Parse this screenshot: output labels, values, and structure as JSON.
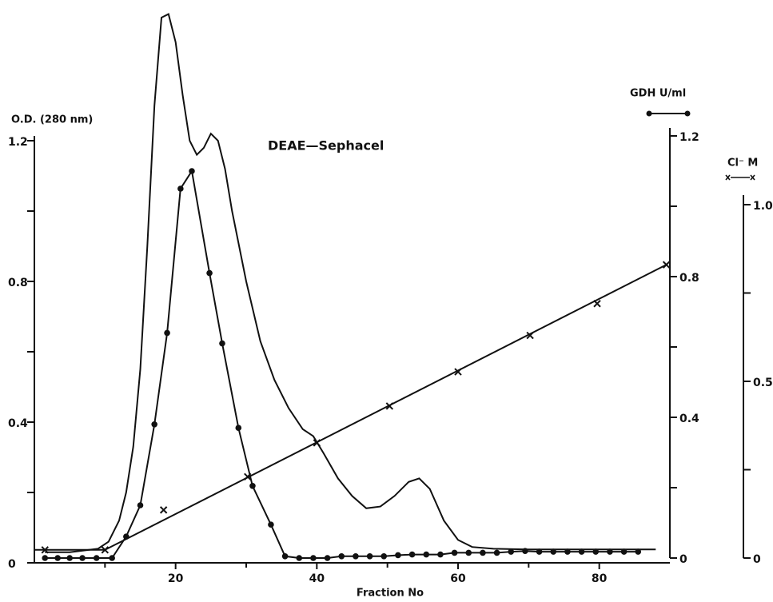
{
  "chart_data": {
    "type": "line",
    "title": "DEAE—Sephacel",
    "x_label": "Fraction   No",
    "y_label": "O.D. (280 nm)",
    "y2_label": "GDH   U/ml",
    "y3_label": "Cl⁻  M",
    "xlim": [
      0,
      90
    ],
    "xticks": [
      20,
      40,
      60,
      80
    ],
    "xminorticks": [
      10,
      30,
      50,
      70
    ],
    "ylim": [
      0,
      1.6
    ],
    "yticks": [
      0,
      0.4,
      0.8,
      1.2
    ],
    "yminorticks": [
      0.2,
      0.6,
      1.0
    ],
    "y2lim": [
      0,
      1.2
    ],
    "y2ticks": [
      0,
      0.4,
      0.8,
      1.2
    ],
    "y2minorticks": [
      0.2,
      0.6,
      1.0
    ],
    "y3lim": [
      0,
      1.0
    ],
    "y3ticks": [
      0,
      0.5,
      {
        "value": 1.0,
        "label": "1.0"
      }
    ],
    "y3minorticks": [
      0.25,
      0.75
    ],
    "series": [
      {
        "name": "O.D. 280 nm",
        "color": "#111",
        "marker": "none",
        "axis": "y",
        "x": [
          1.5,
          5,
          9,
          10.5,
          12,
          13,
          14,
          15,
          16,
          17,
          18,
          19,
          20,
          21,
          22,
          23,
          24,
          25,
          26,
          27,
          28,
          30,
          32,
          34,
          36,
          38,
          39.5,
          41,
          43,
          45,
          47,
          49,
          51,
          53,
          54.5,
          56,
          58,
          60,
          62,
          65,
          70,
          80,
          88
        ],
        "values": [
          0.03,
          0.03,
          0.04,
          0.06,
          0.12,
          0.2,
          0.33,
          0.55,
          0.9,
          1.3,
          1.55,
          1.56,
          1.48,
          1.33,
          1.2,
          1.16,
          1.18,
          1.22,
          1.2,
          1.12,
          1.0,
          0.8,
          0.63,
          0.52,
          0.44,
          0.38,
          0.36,
          0.31,
          0.24,
          0.19,
          0.155,
          0.16,
          0.19,
          0.23,
          0.24,
          0.21,
          0.12,
          0.065,
          0.045,
          0.04,
          0.038,
          0.038,
          0.038
        ]
      },
      {
        "name": "GDH",
        "color": "#111",
        "marker": "dot",
        "axis": "y2",
        "x": [
          1.5,
          3.3,
          5,
          6.8,
          8.8,
          11,
          13,
          15,
          17,
          18.8,
          20.7,
          22.3,
          24.8,
          26.6,
          28.9,
          30.9,
          33.5,
          35.5,
          37.5,
          39.5,
          41.5,
          43.5,
          45.5,
          47.5,
          49.5,
          51.5,
          53.5,
          55.5,
          57.5,
          59.5,
          61.5,
          63.5,
          65.5,
          67.5,
          69.5,
          71.5,
          73.5,
          75.5,
          77.5,
          79.5,
          81.5,
          83.5,
          85.5
        ],
        "values": [
          0,
          0,
          0,
          0,
          0,
          0,
          0.061,
          0.15,
          0.38,
          0.64,
          1.05,
          1.1,
          0.81,
          0.61,
          0.37,
          0.205,
          0.095,
          0.005,
          0,
          0,
          0,
          0.005,
          0.005,
          0.005,
          0.005,
          0.008,
          0.01,
          0.01,
          0.01,
          0.015,
          0.015,
          0.015,
          0.015,
          0.018,
          0.02,
          0.018,
          0.018,
          0.018,
          0.018,
          0.018,
          0.018,
          0.018,
          0.018
        ]
      },
      {
        "name": "Cl⁻",
        "color": "#111",
        "marker": "cross",
        "axis": "y3",
        "x": [
          1.5,
          10,
          18.3,
          30.2,
          40,
          50.3,
          60,
          70.2,
          79.7,
          89.5
        ],
        "values": [
          0.023,
          0.023,
          0.136,
          0.23,
          0.326,
          0.43,
          0.527,
          0.63,
          0.72,
          0.83
        ],
        "line_x": [
          0,
          10,
          89.5
        ],
        "line_values": [
          0.023,
          0.023,
          0.83
        ]
      }
    ]
  }
}
